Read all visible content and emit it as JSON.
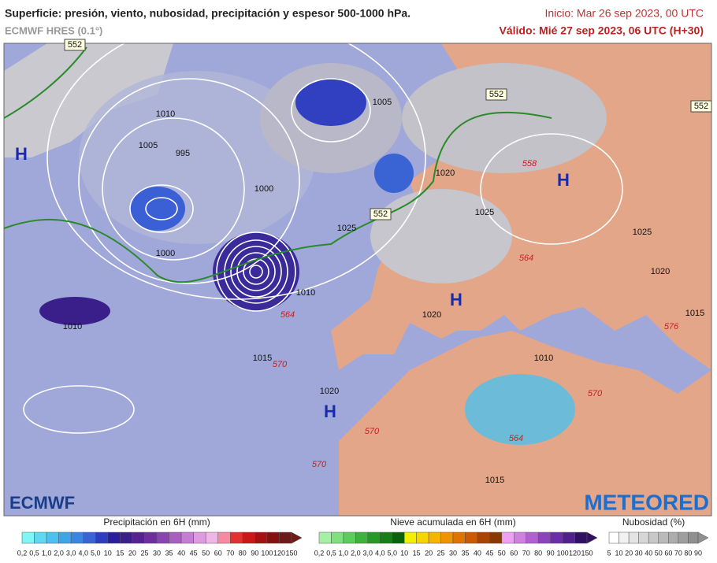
{
  "header": {
    "title": "Superficie: presión, viento, nubosidad, precipitación y espesor 500-1000 hPa.",
    "model": "ECMWF HRES (0.1°)",
    "init": "Inicio: Mar 26 sep 2023, 00 UTC",
    "valid": "Válido: Mié 27 sep 2023, 06 UTC (H+30)"
  },
  "map": {
    "labels": [
      "H",
      "H",
      "H",
      "H",
      "1010",
      "1005",
      "995",
      "1000",
      "1000",
      "1010",
      "1015",
      "1020",
      "1020",
      "1025",
      "1025",
      "1005",
      "1010",
      "1010",
      "1015",
      "1020",
      "1015",
      "1020",
      "1025",
      "552",
      "552",
      "552",
      "552",
      "558",
      "564",
      "564",
      "570",
      "570",
      "570",
      "576",
      "564",
      "570"
    ],
    "logos": [
      "ECMWF",
      "METEORED"
    ]
  },
  "legend": [
    {
      "title": "Precipitación en 6H (mm)",
      "labels": [
        "0,2",
        "0,5",
        "1,0",
        "2,0",
        "3,0",
        "4,0",
        "5,0",
        "10",
        "15",
        "20",
        "25",
        "30",
        "35",
        "40",
        "45",
        "50",
        "60",
        "70",
        "80",
        "90",
        "100",
        "120",
        "150"
      ],
      "colors": [
        "#7ff5f5",
        "#5fd9f0",
        "#4cc0ee",
        "#3ea5ea",
        "#3b86e0",
        "#3a63d3",
        "#2f3cc0",
        "#2a1f9a",
        "#3b1f8a",
        "#56228f",
        "#6e2f9e",
        "#8a44ad",
        "#a85fc0",
        "#c47dd2",
        "#de9ce0",
        "#f0b6e8",
        "#f58aa0",
        "#e03030",
        "#c81818",
        "#a51010",
        "#861010",
        "#6c1a1a"
      ]
    },
    {
      "title": "Nieve acumulada en 6H (mm)",
      "labels": [
        "0,2",
        "0,5",
        "1,0",
        "2,0",
        "3,0",
        "4,0",
        "5,0",
        "10",
        "15",
        "20",
        "25",
        "30",
        "35",
        "40",
        "45",
        "50",
        "60",
        "70",
        "80",
        "90",
        "100",
        "120",
        "150"
      ],
      "colors": [
        "#a6f0a6",
        "#80e080",
        "#5ccc5c",
        "#3cb43c",
        "#259a25",
        "#177f17",
        "#0a620a",
        "#f0f000",
        "#f5d400",
        "#f5b400",
        "#ee9400",
        "#e07400",
        "#cc5a00",
        "#a84400",
        "#883800",
        "#f0a0f0",
        "#d080e0",
        "#b060d0",
        "#8c44bc",
        "#6c2ea8",
        "#50208c",
        "#301060"
      ]
    },
    {
      "title": "Nubosidad (%)",
      "labels": [
        "5",
        "10",
        "20",
        "30",
        "40",
        "50",
        "60",
        "70",
        "80",
        "90"
      ],
      "colors": [
        "#ffffff",
        "#f2f2f2",
        "#e4e4e4",
        "#d6d6d6",
        "#c8c8c8",
        "#bababa",
        "#acacac",
        "#9e9e9e",
        "#909090"
      ]
    }
  ]
}
